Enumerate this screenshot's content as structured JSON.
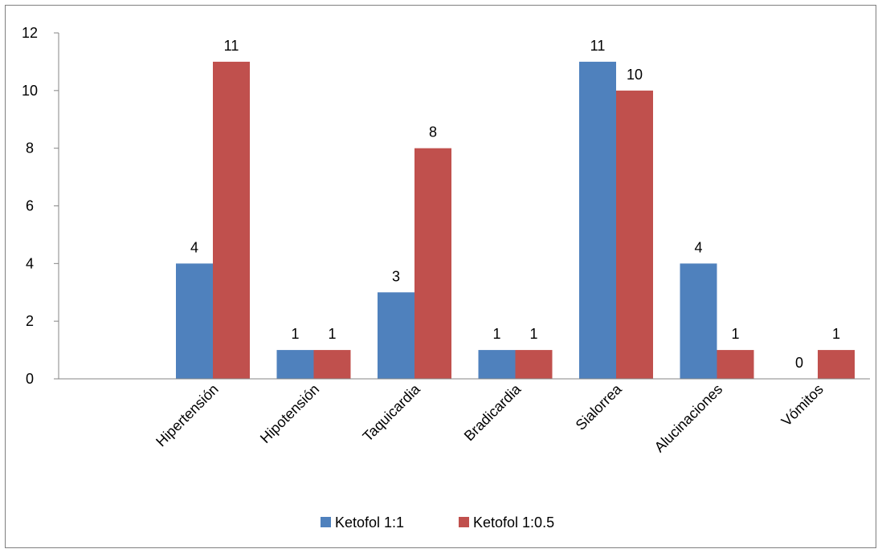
{
  "chart_data": {
    "type": "bar",
    "categories": [
      "Hipertensión",
      "Hipotensión",
      "Taquicardia",
      "Bradicardia",
      "Sialorrea",
      "Alucinaciones",
      "Vómitos"
    ],
    "series": [
      {
        "name": "Ketofol 1:1",
        "values": [
          4,
          1,
          3,
          1,
          11,
          4,
          0
        ],
        "color": "#4f81bd"
      },
      {
        "name": "Ketofol 1:0.5",
        "values": [
          11,
          1,
          8,
          1,
          10,
          1,
          1
        ],
        "color": "#c0504d"
      }
    ],
    "ylim": [
      0,
      12
    ],
    "yticks": [
      0,
      2,
      4,
      6,
      8,
      10,
      12
    ],
    "title": "",
    "xlabel": "",
    "ylabel": "",
    "grid": false,
    "legend_position": "bottom"
  }
}
